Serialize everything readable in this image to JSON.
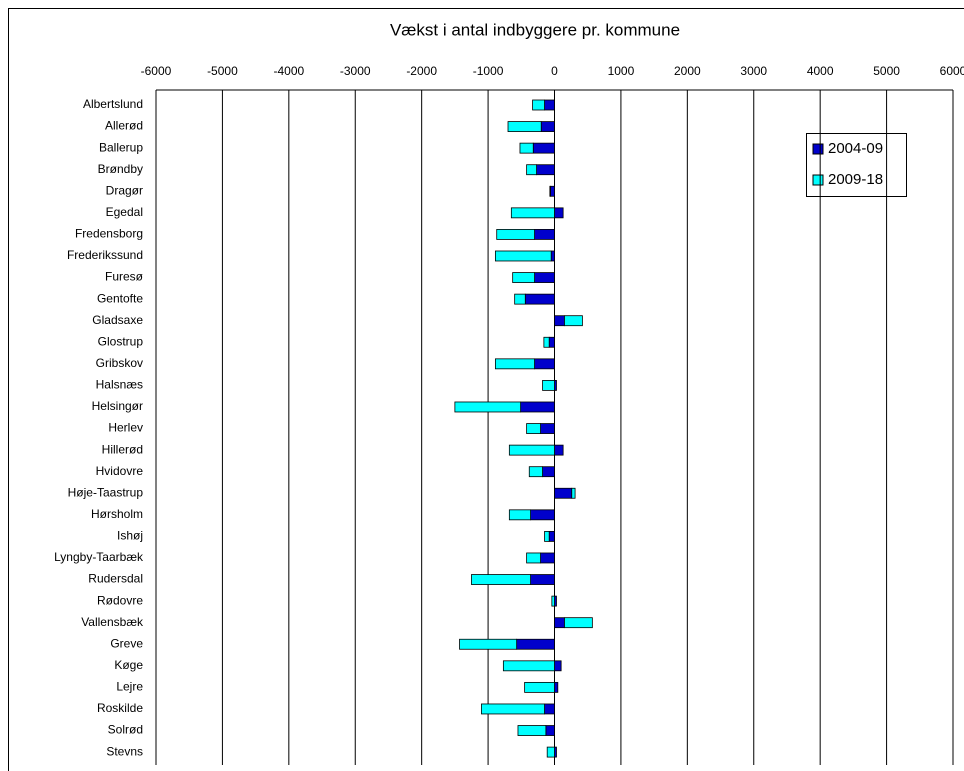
{
  "chart_data": {
    "type": "stacked-barh",
    "title": "Vækst i antal indbyggere pr. kommune",
    "categories": [
      "Albertslund",
      "Allerød",
      "Ballerup",
      "Brøndby",
      "Dragør",
      "Egedal",
      "Fredensborg",
      "Frederikssund",
      "Furesø",
      "Gentofte",
      "Gladsaxe",
      "Glostrup",
      "Gribskov",
      "Halsnæs",
      "Helsingør",
      "Herlev",
      "Hillerød",
      "Hvidovre",
      "Høje-Taastrup",
      "Hørsholm",
      "Ishøj",
      "Lyngby-Taarbæk",
      "Rudersdal",
      "Rødovre",
      "Vallensbæk",
      "Greve",
      "Køge",
      "Lejre",
      "Roskilde",
      "Solrød",
      "Stevns"
    ],
    "series": [
      {
        "name": "2004-09",
        "color": "#0000cc",
        "values": [
          -150,
          -200,
          -320,
          -270,
          -60,
          130,
          -300,
          -50,
          -300,
          -440,
          150,
          -80,
          -300,
          30,
          -510,
          -210,
          130,
          -180,
          260,
          -360,
          -80,
          -210,
          -360,
          30,
          150,
          -570,
          100,
          50,
          -150,
          -130,
          30
        ]
      },
      {
        "name": "2009-18",
        "color": "#00ffff",
        "values": [
          -180,
          -500,
          -200,
          -150,
          -10,
          -650,
          -570,
          -840,
          -330,
          -160,
          270,
          -80,
          -590,
          -180,
          -990,
          -210,
          -680,
          -200,
          50,
          -320,
          -70,
          -210,
          -890,
          -40,
          420,
          -860,
          -770,
          -450,
          -950,
          -420,
          -110
        ]
      }
    ],
    "xlim": [
      -6000,
      6000
    ],
    "xticks": [
      -6000,
      -5000,
      -4000,
      -3000,
      -2000,
      -1000,
      0,
      1000,
      2000,
      3000,
      4000,
      5000,
      6000
    ],
    "grid": true,
    "legend": "upper right"
  }
}
